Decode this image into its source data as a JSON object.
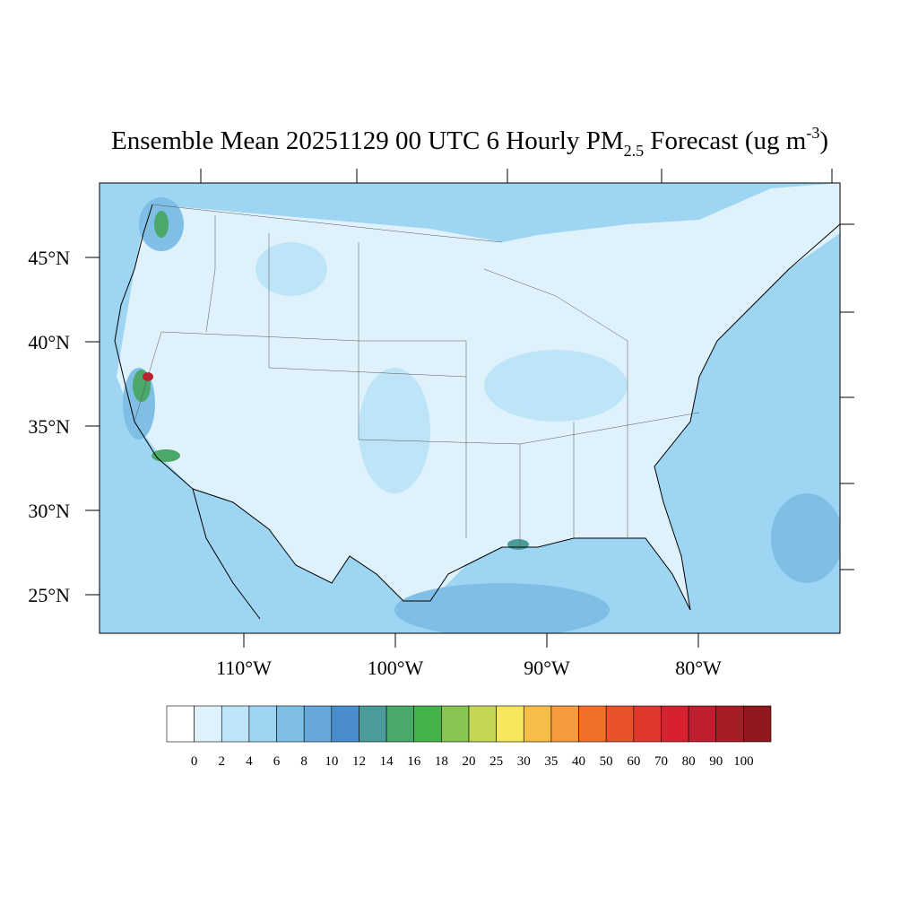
{
  "map": {
    "title": {
      "main": "Ensemble Mean 20251129 00 UTC 6 Hourly PM",
      "sub": "2.5",
      "after": " Forecast (ug m",
      "sup": "-3",
      "end": ")"
    },
    "lat_ticks": [
      {
        "value": 45,
        "label": "45°N"
      },
      {
        "value": 40,
        "label": "40°N"
      },
      {
        "value": 35,
        "label": "35°N"
      },
      {
        "value": 30,
        "label": "30°N"
      },
      {
        "value": 25,
        "label": "25°N"
      }
    ],
    "lon_ticks": [
      {
        "value": -110,
        "label": "110°W"
      },
      {
        "value": -100,
        "label": "100°W"
      },
      {
        "value": -90,
        "label": "90°W"
      },
      {
        "value": -80,
        "label": "80°W"
      }
    ],
    "colorbar": {
      "levels": [
        0,
        2,
        4,
        6,
        8,
        10,
        12,
        14,
        16,
        18,
        20,
        25,
        30,
        35,
        40,
        50,
        60,
        70,
        80,
        90,
        100
      ],
      "colors": [
        "#ffffff",
        "#dff2fb",
        "#bde5f7",
        "#9dd5f3",
        "#80bfe5",
        "#67a8db",
        "#4a8dcb",
        "#4b9b9b",
        "#4aa86a",
        "#46b34a",
        "#86c454",
        "#c4d654",
        "#f6e65a",
        "#f6bd47",
        "#f59a3f",
        "#f26f2a",
        "#e8532c",
        "#e1372f",
        "#d8202f",
        "#be1e2d",
        "#a81d25",
        "#8f191d"
      ]
    }
  }
}
